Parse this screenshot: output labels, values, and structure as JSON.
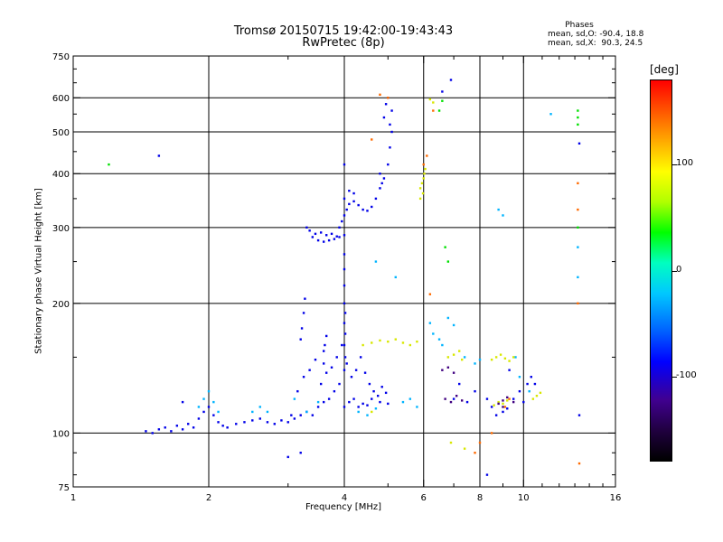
{
  "header": {
    "title_line1": "Tromsø 20150715 19:42:00-19:43:43",
    "title_line2": "RwPretec (8p)"
  },
  "phases": {
    "title": "Phases",
    "mean_o": "mean, sd,O: -90.4, 18.8",
    "mean_x": "mean, sd,X:  90.3, 24.5"
  },
  "colorbar": {
    "unit": "[deg]",
    "ticks": [
      {
        "value": 100,
        "label": "100"
      },
      {
        "value": 0,
        "label": "0"
      },
      {
        "value": -100,
        "label": "-100"
      }
    ],
    "range": [
      -180,
      180
    ],
    "colors": [
      "#ff0000",
      "#ff8000",
      "#ffff00",
      "#00ff00",
      "#00c8ff",
      "#0000ff",
      "#000000"
    ]
  },
  "chart_data": {
    "type": "scatter",
    "xlabel": "Frequency [MHz]",
    "ylabel": "Stationary phase Virtual Height [km]",
    "x_scale": "log",
    "y_scale": "log",
    "xlim": [
      1,
      16
    ],
    "ylim": [
      75,
      750
    ],
    "grid": true,
    "x_ticks": [
      {
        "value": 1,
        "label": "1"
      },
      {
        "value": 2,
        "label": "2"
      },
      {
        "value": 4,
        "label": "4"
      },
      {
        "value": 6,
        "label": "6"
      },
      {
        "value": 8,
        "label": "8"
      },
      {
        "value": 10,
        "label": "10"
      },
      {
        "value": 16,
        "label": "16"
      }
    ],
    "x_grid": [
      2,
      4,
      6,
      8,
      10
    ],
    "y_ticks": [
      {
        "value": 75,
        "label": "75"
      },
      {
        "value": 100,
        "label": "100"
      },
      {
        "value": 200,
        "label": "200"
      },
      {
        "value": 300,
        "label": "300"
      },
      {
        "value": 400,
        "label": "400"
      },
      {
        "value": 500,
        "label": "500"
      },
      {
        "value": 600,
        "label": "600"
      },
      {
        "value": 750,
        "label": "750"
      }
    ],
    "y_grid": [
      100,
      200,
      300,
      400,
      500,
      600
    ],
    "series": [
      {
        "points": [
          [
            1.45,
            101
          ],
          [
            1.5,
            100
          ],
          [
            1.55,
            102
          ],
          [
            1.6,
            103
          ],
          [
            1.65,
            101
          ],
          [
            1.7,
            104
          ],
          [
            1.75,
            102
          ],
          [
            1.8,
            105
          ],
          [
            1.85,
            103
          ],
          [
            1.9,
            108
          ],
          [
            1.95,
            112
          ],
          [
            2.0,
            115
          ],
          [
            2.05,
            110
          ],
          [
            2.1,
            106
          ],
          [
            2.15,
            104
          ],
          [
            2.2,
            103
          ],
          [
            2.3,
            105
          ],
          [
            2.4,
            106
          ],
          [
            2.5,
            107
          ],
          [
            2.6,
            108
          ],
          [
            2.7,
            106
          ],
          [
            2.8,
            105
          ],
          [
            2.9,
            107
          ],
          [
            3.0,
            106
          ],
          [
            3.1,
            108
          ],
          [
            3.2,
            110
          ],
          [
            3.3,
            112
          ],
          [
            3.4,
            110
          ],
          [
            3.5,
            115
          ],
          [
            3.6,
            118
          ],
          [
            3.7,
            120
          ],
          [
            3.8,
            125
          ],
          [
            3.9,
            130
          ],
          [
            4.0,
            115
          ],
          [
            4.1,
            118
          ],
          [
            4.2,
            120
          ],
          [
            4.3,
            115
          ],
          [
            4.4,
            117
          ],
          [
            4.5,
            116
          ],
          [
            4.6,
            120
          ],
          [
            4.8,
            118
          ],
          [
            5.0,
            117
          ],
          [
            3.05,
            110
          ],
          [
            3.15,
            125
          ],
          [
            3.25,
            135
          ],
          [
            3.35,
            140
          ],
          [
            3.45,
            148
          ],
          [
            3.55,
            130
          ],
          [
            3.65,
            138
          ],
          [
            3.75,
            142
          ],
          [
            3.85,
            150
          ],
          [
            3.95,
            160
          ],
          [
            4.05,
            145
          ],
          [
            4.15,
            135
          ],
          [
            4.25,
            140
          ],
          [
            4.35,
            150
          ],
          [
            4.45,
            138
          ],
          [
            4.55,
            130
          ],
          [
            4.65,
            125
          ],
          [
            4.75,
            122
          ],
          [
            4.85,
            128
          ],
          [
            4.95,
            124
          ],
          [
            3.2,
            165
          ],
          [
            3.22,
            175
          ],
          [
            3.25,
            190
          ],
          [
            3.27,
            205
          ],
          [
            3.6,
            145
          ],
          [
            3.6,
            155
          ],
          [
            3.62,
            160
          ],
          [
            3.65,
            168
          ],
          [
            4.0,
            140
          ],
          [
            4.0,
            160
          ],
          [
            4.0,
            180
          ],
          [
            4.0,
            200
          ],
          [
            4.0,
            220
          ],
          [
            4.0,
            240
          ],
          [
            4.0,
            260
          ],
          [
            4.02,
            150
          ],
          [
            4.02,
            170
          ],
          [
            4.02,
            190
          ],
          [
            3.4,
            285
          ],
          [
            3.5,
            280
          ],
          [
            3.6,
            278
          ],
          [
            3.7,
            280
          ],
          [
            3.8,
            282
          ],
          [
            3.9,
            285
          ],
          [
            4.0,
            288
          ],
          [
            3.3,
            300
          ],
          [
            3.35,
            295
          ],
          [
            3.45,
            290
          ],
          [
            3.55,
            292
          ],
          [
            3.65,
            288
          ],
          [
            3.75,
            290
          ],
          [
            3.85,
            286
          ],
          [
            3.9,
            300
          ],
          [
            3.95,
            310
          ],
          [
            4.0,
            320
          ],
          [
            4.05,
            330
          ],
          [
            4.1,
            340
          ],
          [
            4.2,
            345
          ],
          [
            4.3,
            338
          ],
          [
            4.4,
            330
          ],
          [
            4.5,
            328
          ],
          [
            4.6,
            335
          ],
          [
            4.7,
            350
          ],
          [
            4.8,
            370
          ],
          [
            4.9,
            390
          ],
          [
            5.0,
            420
          ],
          [
            5.05,
            460
          ],
          [
            5.1,
            500
          ],
          [
            4.0,
            350
          ],
          [
            4.1,
            365
          ],
          [
            4.2,
            360
          ],
          [
            4.9,
            540
          ],
          [
            4.95,
            580
          ],
          [
            5.0,
            600
          ],
          [
            5.1,
            560
          ],
          [
            5.05,
            520
          ],
          [
            4.8,
            400
          ],
          [
            4.85,
            380
          ],
          [
            1.55,
            440
          ],
          [
            1.75,
            118
          ],
          [
            8.3,
            80
          ],
          [
            8.3,
            120
          ],
          [
            8.5,
            115
          ],
          [
            8.7,
            110
          ],
          [
            9.0,
            112
          ],
          [
            9.2,
            114
          ],
          [
            9.3,
            140
          ],
          [
            9.5,
            120
          ],
          [
            9.8,
            125
          ],
          [
            10.0,
            118
          ],
          [
            10.2,
            130
          ],
          [
            10.4,
            135
          ],
          [
            10.6,
            130
          ],
          [
            6.6,
            620
          ],
          [
            6.9,
            660
          ],
          [
            7.0,
            120
          ],
          [
            7.2,
            130
          ],
          [
            7.5,
            118
          ],
          [
            7.8,
            125
          ],
          [
            13.3,
            110
          ],
          [
            13.3,
            470
          ],
          [
            3.0,
            88
          ],
          [
            3.2,
            90
          ],
          [
            4.0,
            420
          ]
        ],
        "color": "#0000e8"
      },
      {
        "points": [
          [
            1.9,
            115
          ],
          [
            1.95,
            120
          ],
          [
            2.0,
            125
          ],
          [
            2.05,
            118
          ],
          [
            2.1,
            112
          ],
          [
            2.5,
            112
          ],
          [
            2.6,
            115
          ],
          [
            2.7,
            112
          ],
          [
            3.1,
            120
          ],
          [
            3.3,
            112
          ],
          [
            3.5,
            118
          ],
          [
            4.3,
            112
          ],
          [
            4.5,
            110
          ],
          [
            4.7,
            114
          ],
          [
            5.4,
            118
          ],
          [
            5.6,
            120
          ],
          [
            5.8,
            115
          ],
          [
            4.7,
            250
          ],
          [
            5.2,
            230
          ],
          [
            6.2,
            180
          ],
          [
            6.3,
            170
          ],
          [
            6.5,
            165
          ],
          [
            6.6,
            160
          ],
          [
            6.8,
            185
          ],
          [
            7.0,
            178
          ],
          [
            7.4,
            150
          ],
          [
            7.8,
            145
          ],
          [
            8.0,
            148
          ],
          [
            8.8,
            330
          ],
          [
            9.0,
            320
          ],
          [
            9.6,
            150
          ],
          [
            9.8,
            135
          ],
          [
            10.3,
            125
          ],
          [
            11.5,
            550
          ],
          [
            13.2,
            270
          ],
          [
            13.2,
            230
          ]
        ],
        "color": "#00b4ff"
      },
      {
        "points": [
          [
            4.4,
            160
          ],
          [
            4.6,
            162
          ],
          [
            4.8,
            164
          ],
          [
            5.0,
            163
          ],
          [
            5.2,
            165
          ],
          [
            5.4,
            162
          ],
          [
            5.6,
            160
          ],
          [
            5.8,
            163
          ],
          [
            5.9,
            370
          ],
          [
            5.95,
            380
          ],
          [
            6.0,
            390
          ],
          [
            6.02,
            400
          ],
          [
            5.98,
            360
          ],
          [
            6.05,
            410
          ],
          [
            5.9,
            350
          ],
          [
            6.8,
            150
          ],
          [
            7.0,
            152
          ],
          [
            7.2,
            155
          ],
          [
            7.3,
            148
          ],
          [
            8.5,
            148
          ],
          [
            8.7,
            150
          ],
          [
            8.9,
            152
          ],
          [
            9.1,
            149
          ],
          [
            9.3,
            147
          ],
          [
            9.5,
            150
          ],
          [
            8.6,
            116
          ],
          [
            8.8,
            118
          ],
          [
            9.0,
            117
          ],
          [
            9.2,
            119
          ],
          [
            10.5,
            120
          ],
          [
            10.7,
            122
          ],
          [
            10.9,
            124
          ],
          [
            6.2,
            595
          ],
          [
            6.3,
            585
          ],
          [
            6.9,
            95
          ],
          [
            7.4,
            92
          ],
          [
            4.6,
            112
          ]
        ],
        "color": "#d8e800"
      },
      {
        "points": [
          [
            6.1,
            440
          ],
          [
            6.0,
            420
          ],
          [
            6.3,
            560
          ],
          [
            6.2,
            210
          ],
          [
            7.8,
            90
          ],
          [
            8.0,
            95
          ],
          [
            8.5,
            100
          ],
          [
            9.1,
            115
          ],
          [
            9.3,
            120
          ],
          [
            13.3,
            85
          ],
          [
            13.2,
            330
          ],
          [
            13.2,
            380
          ],
          [
            13.2,
            200
          ],
          [
            5.0,
            600
          ],
          [
            4.6,
            480
          ],
          [
            4.8,
            610
          ]
        ],
        "color": "#ff6a00"
      },
      {
        "points": [
          [
            6.7,
            120
          ],
          [
            6.9,
            118
          ],
          [
            7.1,
            122
          ],
          [
            7.3,
            119
          ],
          [
            8.8,
            117
          ],
          [
            9.0,
            119
          ],
          [
            9.2,
            121
          ],
          [
            6.6,
            140
          ],
          [
            6.8,
            142
          ],
          [
            7.0,
            138
          ],
          [
            9.5,
            118
          ],
          [
            9.0,
            115
          ]
        ],
        "color": "#400080"
      },
      {
        "points": [
          [
            13.2,
            540
          ],
          [
            13.2,
            560
          ],
          [
            13.2,
            520
          ],
          [
            6.6,
            590
          ],
          [
            6.5,
            560
          ],
          [
            6.8,
            250
          ],
          [
            6.7,
            270
          ],
          [
            13.2,
            300
          ],
          [
            1.2,
            420
          ]
        ],
        "color": "#00e000"
      }
    ]
  }
}
